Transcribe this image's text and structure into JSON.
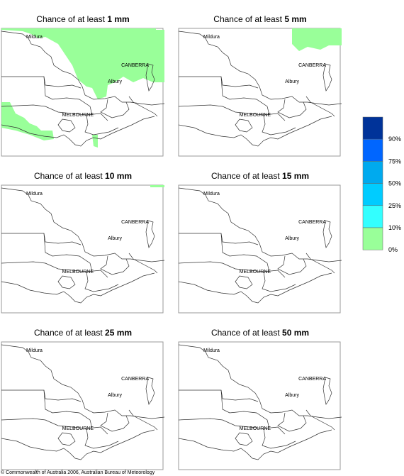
{
  "panels": [
    {
      "title_prefix": "Chance of at least",
      "amount": "1 mm"
    },
    {
      "title_prefix": "Chance of at least",
      "amount": "5 mm"
    },
    {
      "title_prefix": "Chance of at least",
      "amount": "10 mm"
    },
    {
      "title_prefix": "Chance of at least",
      "amount": "15 mm"
    },
    {
      "title_prefix": "Chance of at least",
      "amount": "25 mm"
    },
    {
      "title_prefix": "Chance of at least",
      "amount": "50 mm"
    }
  ],
  "places": [
    "Mildura",
    "CANBERRA",
    "Albury",
    "MELBOURNE"
  ],
  "legend": {
    "colors": [
      "#003399",
      "#0066ff",
      "#00aaee",
      "#00ccff",
      "#33ffff",
      "#99ff99",
      "#ffffff"
    ],
    "labels": [
      "90%",
      "75%",
      "50%",
      "25%",
      "10%",
      "0%"
    ]
  },
  "footer": "© Commonwealth of Australia 2006, Australian Bureau of Meteorology"
}
